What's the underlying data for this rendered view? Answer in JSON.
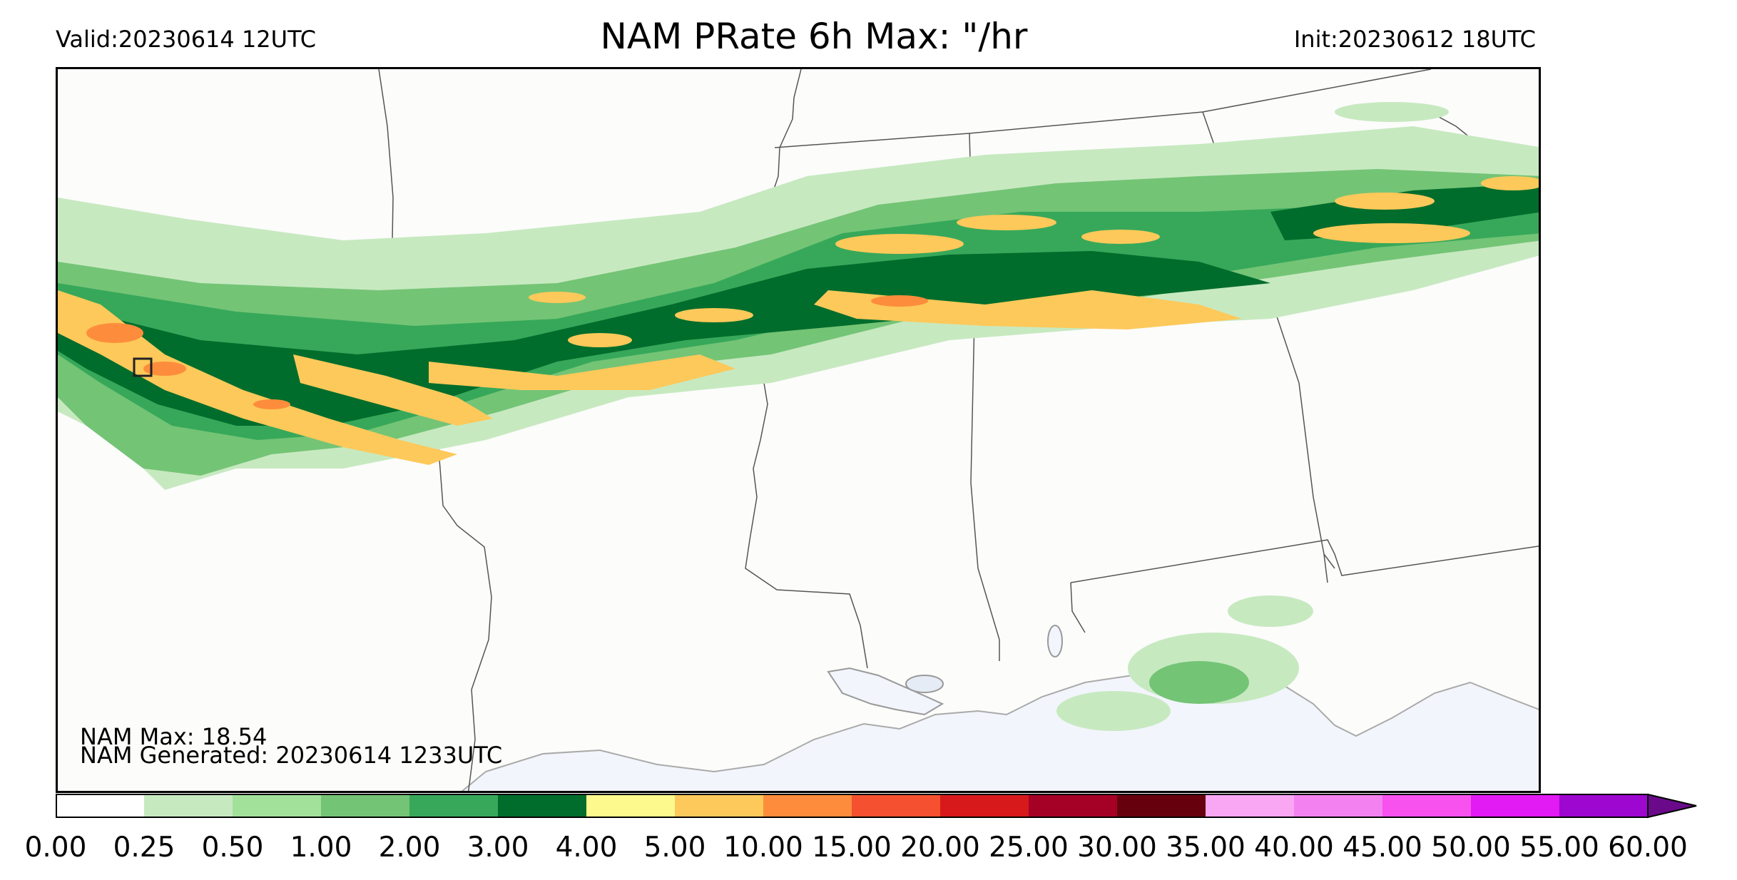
{
  "header": {
    "valid": "Valid:20230614 12UTC",
    "title": "NAM PRate 6h Max: \"/hr",
    "init": "Init:20230612 18UTC"
  },
  "stats": {
    "max": "NAM Max: 18.54",
    "generated": "NAM Generated: 20230614 1233UTC"
  },
  "colorbar": {
    "bins": [
      {
        "from": "0.00",
        "to": "0.25",
        "color": "#ffffff"
      },
      {
        "from": "0.25",
        "to": "0.50",
        "color": "#c7e9c0"
      },
      {
        "from": "0.50",
        "to": "1.00",
        "color": "#a1e19a"
      },
      {
        "from": "1.00",
        "to": "2.00",
        "color": "#74c476"
      },
      {
        "from": "2.00",
        "to": "3.00",
        "color": "#37a85a"
      },
      {
        "from": "3.00",
        "to": "4.00",
        "color": "#006d2c"
      },
      {
        "from": "4.00",
        "to": "5.00",
        "color": "#fdf98c"
      },
      {
        "from": "5.00",
        "to": "10.00",
        "color": "#fdc95a"
      },
      {
        "from": "10.00",
        "to": "15.00",
        "color": "#fd8d3c"
      },
      {
        "from": "15.00",
        "to": "20.00",
        "color": "#f5502f"
      },
      {
        "from": "20.00",
        "to": "25.00",
        "color": "#d7191c"
      },
      {
        "from": "25.00",
        "to": "30.00",
        "color": "#a50026"
      },
      {
        "from": "30.00",
        "to": "35.00",
        "color": "#67000d"
      },
      {
        "from": "35.00",
        "to": "40.00",
        "color": "#f9a6f3"
      },
      {
        "from": "40.00",
        "to": "45.00",
        "color": "#f381f0"
      },
      {
        "from": "45.00",
        "to": "50.00",
        "color": "#f751ee"
      },
      {
        "from": "50.00",
        "to": "55.00",
        "color": "#e21af3"
      },
      {
        "from": "55.00",
        "to": "60.00",
        "color": "#9d07d0"
      }
    ],
    "extend_color": "#6a0a8a",
    "ticks": [
      "0.00",
      "0.25",
      "0.50",
      "1.00",
      "2.00",
      "3.00",
      "4.00",
      "5.00",
      "10.00",
      "15.00",
      "20.00",
      "25.00",
      "30.00",
      "35.00",
      "40.00",
      "45.00",
      "50.00",
      "55.00",
      "60.00"
    ]
  },
  "map_colors": {
    "land": "#fcfcfb",
    "water": "#f2f5fb",
    "border": "#555555",
    "light_green": "#c7e9c0",
    "green": "#74c476",
    "dark_green": "#37a85a",
    "deep_green": "#006d2c",
    "yellow": "#fdc95a",
    "orange": "#fd8d3c"
  }
}
